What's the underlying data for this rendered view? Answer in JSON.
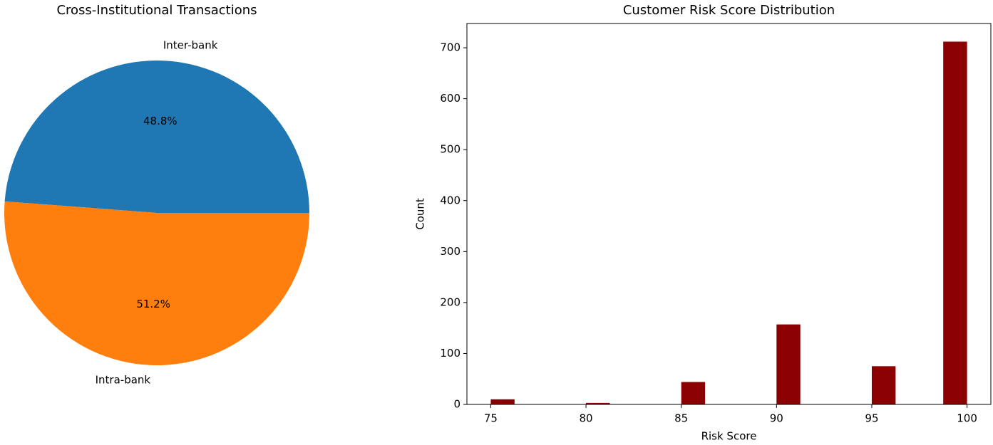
{
  "chart_data": [
    {
      "type": "pie",
      "title": "Cross-Institutional Transactions",
      "categories": [
        "Inter-bank",
        "Intra-bank"
      ],
      "values": [
        48.8,
        51.2
      ],
      "value_labels": [
        "48.8%",
        "51.2%"
      ],
      "colors": [
        "#1f77b4",
        "#ff7f0e"
      ]
    },
    {
      "type": "histogram",
      "title": "Customer Risk Score Distribution",
      "x_label": "Risk Score",
      "y_label": "Count",
      "bins": [
        75,
        76.25,
        77.5,
        78.75,
        80,
        81.25,
        82.5,
        83.75,
        85,
        86.25,
        87.5,
        88.75,
        90,
        91.25,
        92.5,
        93.75,
        95,
        96.25,
        97.5,
        98.75,
        100
      ],
      "values": [
        10,
        0,
        0,
        0,
        3,
        0,
        0,
        0,
        44,
        0,
        0,
        0,
        157,
        0,
        0,
        0,
        75,
        0,
        0,
        712
      ],
      "color": "#8b0000",
      "xlim": [
        73.75,
        101.25
      ],
      "xticks": [
        75,
        80,
        85,
        90,
        95,
        100
      ],
      "ylim": [
        0,
        747.6
      ],
      "yticks": [
        0,
        100,
        200,
        300,
        400,
        500,
        600,
        700
      ]
    }
  ]
}
